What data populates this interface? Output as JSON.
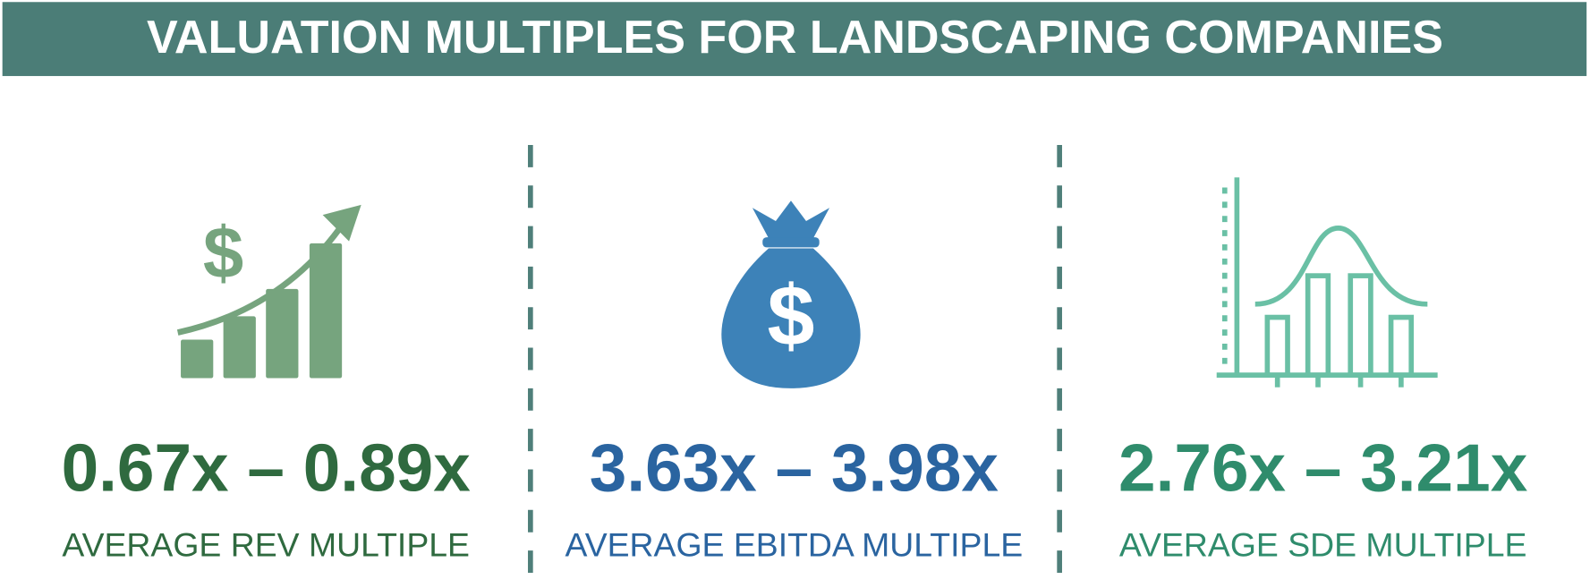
{
  "header": {
    "title": "VALUATION MULTIPLES FOR LANDSCAPING COMPANIES"
  },
  "panels": [
    {
      "value": "0.67x – 0.89x",
      "label": "AVERAGE REV MULTIPLE",
      "color": "#2f6a3f"
    },
    {
      "value": "3.63x – 3.98x",
      "label": "AVERAGE EBITDA MULTIPLE",
      "color": "#2a64a0"
    },
    {
      "value": "2.76x – 3.21x",
      "label": "AVERAGE SDE MULTIPLE",
      "color": "#2f8c6c"
    }
  ]
}
